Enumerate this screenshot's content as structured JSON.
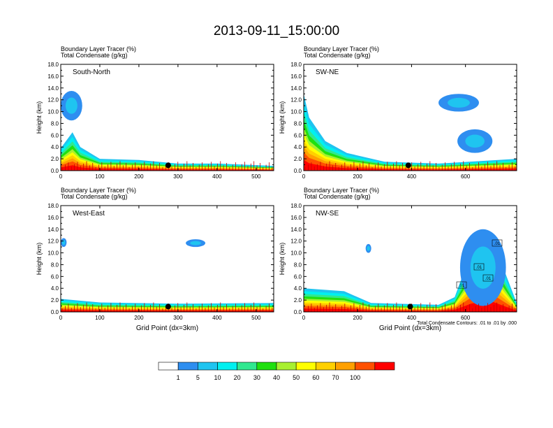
{
  "title": "2013-09-11_15:00:00",
  "panels": [
    {
      "name": "south-north",
      "label": "South-North",
      "field_label_1": "Boundary Layer Tracer",
      "field_unit_1": "(%)",
      "field_label_2": "Total Condensate",
      "field_unit_2": "(g/kg)",
      "xlabel": "",
      "ylabel": "Height (km)",
      "xlim": [
        0,
        545
      ],
      "xticks": [
        0,
        100,
        200,
        300,
        400,
        500
      ],
      "ylim": [
        0,
        18
      ],
      "yticks": [
        "0.0",
        "2.0",
        "4.0",
        "6.0",
        "8.0",
        "10.0",
        "12.0",
        "14.0",
        "16.0",
        "18.0"
      ],
      "marker_x": 275,
      "contour_labels": []
    },
    {
      "name": "sw-ne",
      "label": "SW-NE",
      "field_label_1": "Boundary Layer Tracer",
      "field_unit_1": "(%)",
      "field_label_2": "Total Condensate",
      "field_unit_2": "(g/kg)",
      "xlabel": "",
      "ylabel": "Height (km)",
      "xlim": [
        0,
        790
      ],
      "xticks": [
        0,
        200,
        400,
        600
      ],
      "ylim": [
        0,
        18
      ],
      "yticks": [
        "0.0",
        "2.0",
        "4.0",
        "6.0",
        "8.0",
        "10.0",
        "12.0",
        "14.0",
        "16.0",
        "18.0"
      ],
      "marker_x": 388,
      "contour_labels": []
    },
    {
      "name": "west-east",
      "label": "West-East",
      "field_label_1": "Boundary Layer Tracer",
      "field_unit_1": "(%)",
      "field_label_2": "Total Condensate",
      "field_unit_2": "(g/kg)",
      "xlabel": "Grid Point (dx=3km)",
      "ylabel": "Height (km)",
      "xlim": [
        0,
        545
      ],
      "xticks": [
        0,
        100,
        200,
        300,
        400,
        500
      ],
      "ylim": [
        0,
        18
      ],
      "yticks": [
        "0.0",
        "2.0",
        "4.0",
        "6.0",
        "8.0",
        "10.0",
        "12.0",
        "14.0",
        "16.0",
        "18.0"
      ],
      "marker_x": 275,
      "contour_labels": []
    },
    {
      "name": "nw-se",
      "label": "NW-SE",
      "field_label_1": "Boundary Layer Tracer",
      "field_unit_1": "(%)",
      "field_label_2": "Total Condensate",
      "field_unit_2": "(g/kg)",
      "xlabel": "Grid Point (dx=3km)",
      "ylabel": "Height (km)",
      "xlim": [
        0,
        790
      ],
      "xticks": [
        0,
        200,
        400,
        600
      ],
      "ylim": [
        0,
        18
      ],
      "yticks": [
        "0.0",
        "2.0",
        "4.0",
        "6.0",
        "8.0",
        "10.0",
        "12.0",
        "14.0",
        "16.0",
        "18.0"
      ],
      "marker_x": 395,
      "contour_note": "Total Condensate Contours: .01 to .01 by .000",
      "contour_labels": [
        ".01",
        ".01",
        ".01",
        ".01"
      ]
    }
  ],
  "colorbar": {
    "colors": [
      "#ffffff",
      "#2e8ef0",
      "#1fc4f0",
      "#00f0f0",
      "#30e890",
      "#20e010",
      "#a8f030",
      "#ffff00",
      "#ffd000",
      "#ffa000",
      "#ff5000",
      "#ff0000"
    ],
    "labels": [
      "1",
      "5",
      "10",
      "20",
      "30",
      "40",
      "50",
      "60",
      "70",
      "100"
    ]
  },
  "chart_data": [
    {
      "type": "heatmap",
      "title": "South-North",
      "series": [
        {
          "name": "Boundary Layer Tracer (%)",
          "levels": [
            1,
            5,
            10,
            20,
            30,
            40,
            50,
            60,
            70,
            100
          ]
        },
        {
          "name": "Total Condensate (g/kg)",
          "contour_levels": [
            0.01
          ]
        }
      ],
      "xlim": [
        0,
        545
      ],
      "ylim": [
        0,
        18
      ],
      "ylabel": "Height (km)",
      "boundary_layer_top_km": [
        [
          0,
          3.8
        ],
        [
          30,
          6.5
        ],
        [
          50,
          4.0
        ],
        [
          100,
          2.0
        ],
        [
          200,
          1.8
        ],
        [
          300,
          1.2
        ],
        [
          400,
          1.2
        ],
        [
          545,
          0.8
        ]
      ],
      "cloud_regions": [
        {
          "x": [
            0,
            55
          ],
          "y_km": [
            8.5,
            13.5
          ]
        }
      ]
    },
    {
      "type": "heatmap",
      "title": "SW-NE",
      "series": [
        {
          "name": "Boundary Layer Tracer (%)",
          "levels": [
            1,
            5,
            10,
            20,
            30,
            40,
            50,
            60,
            70,
            100
          ]
        },
        {
          "name": "Total Condensate (g/kg)",
          "contour_levels": [
            0.01
          ]
        }
      ],
      "xlim": [
        0,
        790
      ],
      "ylim": [
        0,
        18
      ],
      "ylabel": "Height (km)",
      "boundary_layer_top_km": [
        [
          0,
          13.0
        ],
        [
          20,
          9.0
        ],
        [
          80,
          5.0
        ],
        [
          160,
          3.0
        ],
        [
          300,
          1.5
        ],
        [
          500,
          1.2
        ],
        [
          790,
          2.0
        ]
      ],
      "cloud_regions": [
        {
          "x": [
            500,
            650
          ],
          "y_km": [
            10.0,
            13.0
          ]
        },
        {
          "x": [
            570,
            700
          ],
          "y_km": [
            3.0,
            7.0
          ]
        }
      ]
    },
    {
      "type": "heatmap",
      "title": "West-East",
      "series": [
        {
          "name": "Boundary Layer Tracer (%)",
          "levels": [
            1,
            5,
            10,
            20,
            30,
            40,
            50,
            60,
            70,
            100
          ]
        },
        {
          "name": "Total Condensate (g/kg)",
          "contour_levels": [
            0.01
          ]
        }
      ],
      "xlim": [
        0,
        545
      ],
      "ylim": [
        0,
        18
      ],
      "ylabel": "Height (km)",
      "boundary_layer_top_km": [
        [
          0,
          2.2
        ],
        [
          100,
          1.6
        ],
        [
          300,
          1.4
        ],
        [
          545,
          1.5
        ]
      ],
      "cloud_regions": [
        {
          "x": [
            0,
            15
          ],
          "y_km": [
            11.0,
            12.5
          ]
        },
        {
          "x": [
            320,
            370
          ],
          "y_km": [
            11.0,
            12.3
          ]
        }
      ]
    },
    {
      "type": "heatmap",
      "title": "NW-SE",
      "series": [
        {
          "name": "Boundary Layer Tracer (%)",
          "levels": [
            1,
            5,
            10,
            20,
            30,
            40,
            50,
            60,
            70,
            100
          ]
        },
        {
          "name": "Total Condensate (g/kg)",
          "contour_levels": [
            0.01
          ]
        }
      ],
      "xlim": [
        0,
        790
      ],
      "ylim": [
        0,
        18
      ],
      "ylabel": "Height (km)",
      "boundary_layer_top_km": [
        [
          0,
          4.0
        ],
        [
          150,
          3.5
        ],
        [
          250,
          1.5
        ],
        [
          500,
          1.2
        ],
        [
          560,
          2.5
        ],
        [
          620,
          10.0
        ],
        [
          690,
          13.5
        ],
        [
          790,
          1.5
        ]
      ],
      "cloud_regions": [
        {
          "x": [
            580,
            750
          ],
          "y_km": [
            1.0,
            14.0
          ]
        },
        {
          "x": [
            230,
            250
          ],
          "y_km": [
            10.0,
            11.5
          ]
        }
      ]
    }
  ]
}
